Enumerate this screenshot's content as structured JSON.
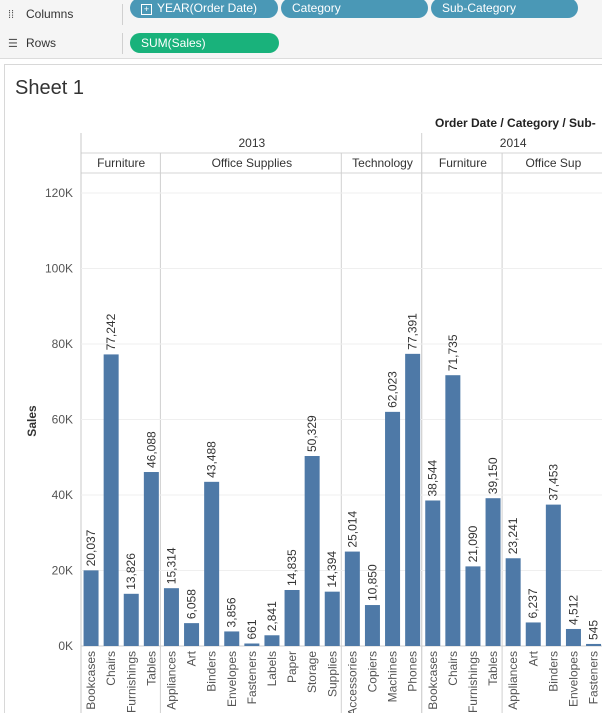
{
  "shelves": {
    "columns_label": "Columns",
    "rows_label": "Rows",
    "columns_pills": [
      "YEAR(Order Date)",
      "Category",
      "Sub-Category"
    ],
    "rows_pill": "SUM(Sales)"
  },
  "sheet": {
    "title": "Sheet 1"
  },
  "colors": {
    "bar": "#4e79a7",
    "dimension_pill": "#4a98b6",
    "measure_pill": "#19b27b"
  },
  "chart_data": {
    "type": "bar",
    "title": "",
    "header_title": "Order Date / Category / Sub-",
    "ylabel": "Sales",
    "ylim": [
      0,
      125000
    ],
    "yticks": [
      0,
      20000,
      40000,
      60000,
      80000,
      100000,
      120000
    ],
    "ytick_labels": [
      "0K",
      "20K",
      "40K",
      "60K",
      "80K",
      "100K",
      "120K"
    ],
    "years": [
      {
        "label": "2013",
        "start": 0,
        "end": 17
      },
      {
        "label": "2014",
        "start": 17,
        "end": 26
      }
    ],
    "categories": [
      {
        "label": "Furniture",
        "start": 0,
        "end": 4
      },
      {
        "label": "Office Supplies",
        "start": 4,
        "end": 13
      },
      {
        "label": "Technology",
        "start": 13,
        "end": 17
      },
      {
        "label": "Furniture",
        "start": 17,
        "end": 21
      },
      {
        "label": "Office Sup",
        "start": 21,
        "end": 26
      }
    ],
    "bars": [
      {
        "sub": "Bookcases",
        "value": 20037,
        "label": "20,037"
      },
      {
        "sub": "Chairs",
        "value": 77242,
        "label": "77,242"
      },
      {
        "sub": "Furnishings",
        "value": 13826,
        "label": "13,826"
      },
      {
        "sub": "Tables",
        "value": 46088,
        "label": "46,088"
      },
      {
        "sub": "Appliances",
        "value": 15314,
        "label": "15,314"
      },
      {
        "sub": "Art",
        "value": 6058,
        "label": "6,058"
      },
      {
        "sub": "Binders",
        "value": 43488,
        "label": "43,488"
      },
      {
        "sub": "Envelopes",
        "value": 3856,
        "label": "3,856"
      },
      {
        "sub": "Fasteners",
        "value": 661,
        "label": "661"
      },
      {
        "sub": "Labels",
        "value": 2841,
        "label": "2,841"
      },
      {
        "sub": "Paper",
        "value": 14835,
        "label": "14,835"
      },
      {
        "sub": "Storage",
        "value": 50329,
        "label": "50,329"
      },
      {
        "sub": "Supplies",
        "value": 14394,
        "label": "14,394"
      },
      {
        "sub": "Accessories",
        "value": 25014,
        "label": "25,014"
      },
      {
        "sub": "Copiers",
        "value": 10850,
        "label": "10,850"
      },
      {
        "sub": "Machines",
        "value": 62023,
        "label": "62,023"
      },
      {
        "sub": "Phones",
        "value": 77391,
        "label": "77,391"
      },
      {
        "sub": "Bookcases",
        "value": 38544,
        "label": "38,544"
      },
      {
        "sub": "Chairs",
        "value": 71735,
        "label": "71,735"
      },
      {
        "sub": "Furnishings",
        "value": 21090,
        "label": "21,090"
      },
      {
        "sub": "Tables",
        "value": 39150,
        "label": "39,150"
      },
      {
        "sub": "Appliances",
        "value": 23241,
        "label": "23,241"
      },
      {
        "sub": "Art",
        "value": 6237,
        "label": "6,237"
      },
      {
        "sub": "Binders",
        "value": 37453,
        "label": "37,453"
      },
      {
        "sub": "Envelopes",
        "value": 4512,
        "label": "4,512"
      },
      {
        "sub": "Fasteners",
        "value": 545,
        "label": "545"
      }
    ]
  }
}
